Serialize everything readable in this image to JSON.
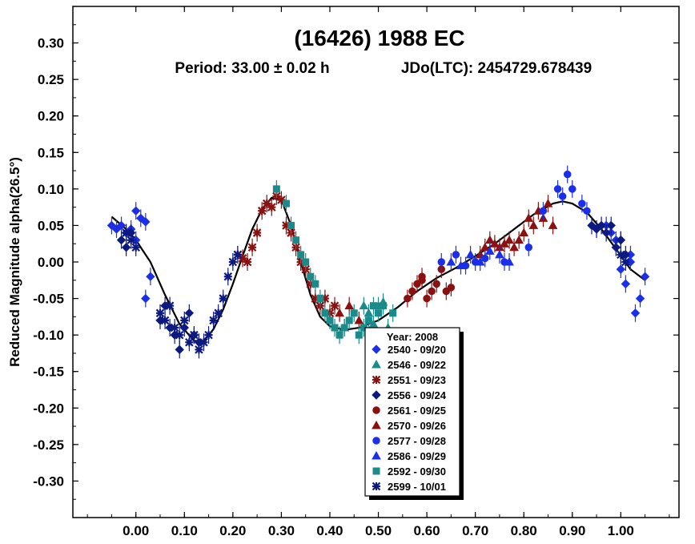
{
  "chart_data": {
    "type": "scatter",
    "title": "(16426) 1988 EC",
    "subtitle_period": "Period: 33.00 ± 0.02 h",
    "subtitle_epoch": "JDo(LTC): 2454729.678439",
    "xlabel": "",
    "ylabel": "Reduced Magnitude alpha(26.5°)",
    "xlim": [
      -0.13,
      1.12
    ],
    "ylim": [
      0.35,
      -0.35
    ],
    "x_ticks": [
      0.0,
      0.1,
      0.2,
      0.3,
      0.4,
      0.5,
      0.6,
      0.7,
      0.8,
      0.9,
      1.0
    ],
    "x_tick_labels": [
      "0.00",
      "0.10",
      "0.20",
      "0.30",
      "0.40",
      "0.50",
      "0.60",
      "0.70",
      "0.80",
      "0.90",
      "1.00"
    ],
    "y_ticks": [
      -0.3,
      -0.25,
      -0.2,
      -0.15,
      -0.1,
      -0.05,
      0.0,
      0.05,
      0.1,
      0.15,
      0.2,
      0.25,
      0.3
    ],
    "y_tick_labels": [
      "-0.30",
      "-0.25",
      "-0.20",
      "-0.15",
      "-0.10",
      "-0.05",
      "0.00",
      "0.05",
      "0.10",
      "0.15",
      "0.20",
      "0.25",
      "0.30"
    ],
    "legend": {
      "title": "Year: 2008",
      "position": "bottom-center",
      "entries": [
        {
          "label": "2540 - 09/20",
          "color": "#1c2fe8",
          "marker": "diamond"
        },
        {
          "label": "2546 - 09/22",
          "color": "#1a8a8a",
          "marker": "triangle"
        },
        {
          "label": "2551 - 09/23",
          "color": "#8b1010",
          "marker": "star"
        },
        {
          "label": "2556 - 09/24",
          "color": "#0c1a80",
          "marker": "diamond"
        },
        {
          "label": "2561 - 09/25",
          "color": "#8b1010",
          "marker": "circle"
        },
        {
          "label": "2570 - 09/26",
          "color": "#8b1010",
          "marker": "triangle"
        },
        {
          "label": "2577 - 09/28",
          "color": "#1c2fe8",
          "marker": "circle"
        },
        {
          "label": "2586 - 09/29",
          "color": "#1c2fe8",
          "marker": "triangle"
        },
        {
          "label": "2592 - 09/30",
          "color": "#1a8a8a",
          "marker": "square"
        },
        {
          "label": "2599 - 10/01",
          "color": "#0c1a80",
          "marker": "star"
        }
      ]
    },
    "fit_curve": {
      "x": [
        -0.05,
        -0.02,
        0.0,
        0.03,
        0.06,
        0.09,
        0.12,
        0.14,
        0.16,
        0.18,
        0.2,
        0.22,
        0.24,
        0.26,
        0.28,
        0.3,
        0.32,
        0.34,
        0.36,
        0.38,
        0.4,
        0.43,
        0.46,
        0.5,
        0.54,
        0.58,
        0.62,
        0.66,
        0.7,
        0.74,
        0.78,
        0.82,
        0.86,
        0.88,
        0.9,
        0.93,
        0.96,
        0.99,
        1.02,
        1.05
      ],
      "y": [
        0.062,
        0.045,
        0.03,
        0.0,
        -0.045,
        -0.085,
        -0.108,
        -0.108,
        -0.092,
        -0.065,
        -0.03,
        0.008,
        0.045,
        0.072,
        0.088,
        0.085,
        0.05,
        0.0,
        -0.045,
        -0.075,
        -0.088,
        -0.093,
        -0.09,
        -0.08,
        -0.062,
        -0.04,
        -0.022,
        -0.008,
        0.008,
        0.025,
        0.045,
        0.065,
        0.08,
        0.083,
        0.08,
        0.068,
        0.045,
        0.018,
        -0.01,
        -0.025
      ]
    },
    "series": [
      {
        "name": "2540 - 09/20",
        "marker": "diamond",
        "color": "#1c2fe8",
        "x": [
          -0.05,
          -0.04,
          -0.03,
          -0.02,
          -0.01,
          0.0,
          0.0,
          0.01,
          0.02,
          0.02,
          0.03,
          0.97,
          0.98,
          0.99,
          1.0,
          1.01,
          1.02,
          1.03,
          1.04,
          1.05,
          1.0,
          1.02
        ],
        "y": [
          0.05,
          0.045,
          0.05,
          0.04,
          0.045,
          0.07,
          0.03,
          0.06,
          0.055,
          -0.05,
          -0.02,
          0.05,
          0.04,
          0.03,
          -0.01,
          -0.03,
          0.01,
          -0.07,
          -0.05,
          -0.02,
          0.03,
          0.0
        ]
      },
      {
        "name": "2546 - 09/22",
        "marker": "triangle",
        "color": "#1a8a8a",
        "x": [
          0.48,
          0.5,
          0.51,
          0.49,
          0.47,
          0.52
        ],
        "y": [
          -0.07,
          -0.06,
          -0.055,
          -0.085,
          -0.06,
          -0.09
        ]
      },
      {
        "name": "2551 - 09/23",
        "marker": "star",
        "color": "#8b1010",
        "x": [
          0.21,
          0.22,
          0.23,
          0.24,
          0.25,
          0.26,
          0.27,
          0.28,
          0.29,
          0.3,
          0.31,
          0.32,
          0.33,
          0.34,
          0.35,
          0.36,
          0.37,
          0.38,
          0.39,
          0.4,
          0.41
        ],
        "y": [
          0.01,
          0.005,
          0.0,
          0.02,
          0.04,
          0.07,
          0.08,
          0.075,
          0.09,
          0.085,
          0.05,
          0.04,
          0.02,
          0.0,
          -0.01,
          -0.03,
          -0.05,
          -0.06,
          -0.05,
          -0.07,
          -0.06
        ]
      },
      {
        "name": "2556 - 09/24",
        "marker": "diamond",
        "color": "#0c1a80",
        "x": [
          0.05,
          0.06,
          0.07,
          0.08,
          0.09,
          0.1,
          0.11,
          0.12,
          0.13,
          0.94,
          0.95,
          0.96,
          0.97,
          0.98,
          0.99,
          1.0,
          1.01,
          -0.03,
          -0.02,
          -0.01
        ],
        "y": [
          -0.08,
          -0.06,
          -0.09,
          -0.1,
          -0.12,
          -0.09,
          -0.07,
          -0.1,
          -0.11,
          0.05,
          0.045,
          0.05,
          0.04,
          0.05,
          0.02,
          0.03,
          0.01,
          0.03,
          0.02,
          0.04
        ]
      },
      {
        "name": "2561 - 09/25",
        "marker": "circle",
        "color": "#8b1010",
        "x": [
          0.56,
          0.57,
          0.58,
          0.59,
          0.6,
          0.61,
          0.62,
          0.63,
          0.64,
          0.65,
          0.59
        ],
        "y": [
          -0.05,
          -0.04,
          -0.03,
          -0.02,
          -0.05,
          -0.04,
          -0.03,
          -0.01,
          -0.04,
          -0.035,
          -0.025
        ]
      },
      {
        "name": "2570 - 09/26",
        "marker": "triangle",
        "color": "#8b1010",
        "x": [
          0.71,
          0.72,
          0.73,
          0.74,
          0.75,
          0.76,
          0.77,
          0.78,
          0.79,
          0.8,
          0.81,
          0.82,
          0.83,
          0.84,
          0.85,
          0.86,
          0.42,
          0.44,
          0.46,
          0.43
        ],
        "y": [
          0.01,
          0.02,
          0.03,
          0.025,
          0.02,
          0.025,
          0.03,
          0.02,
          0.03,
          0.04,
          0.06,
          0.05,
          0.07,
          0.06,
          0.08,
          0.05,
          -0.07,
          -0.06,
          -0.08,
          -0.09
        ]
      },
      {
        "name": "2577 - 09/28",
        "marker": "circle",
        "color": "#1c2fe8",
        "x": [
          0.63,
          0.66,
          0.68,
          0.7,
          0.72,
          0.76,
          0.81,
          0.84,
          0.87,
          0.88,
          0.89,
          0.9,
          0.92,
          0.93
        ],
        "y": [
          0.0,
          0.01,
          -0.005,
          0.0,
          0.005,
          0.0,
          0.02,
          0.07,
          0.1,
          0.09,
          0.12,
          0.1,
          0.08,
          0.07
        ]
      },
      {
        "name": "2586 - 09/29",
        "marker": "triangle",
        "color": "#1c2fe8",
        "x": [
          0.65,
          0.67,
          0.69,
          0.71,
          0.73,
          0.75,
          0.77
        ],
        "y": [
          0.0,
          -0.005,
          0.01,
          0.0,
          0.015,
          0.01,
          0.0
        ]
      },
      {
        "name": "2592 - 09/30",
        "marker": "square",
        "color": "#1a8a8a",
        "x": [
          0.29,
          0.31,
          0.32,
          0.33,
          0.34,
          0.35,
          0.36,
          0.37,
          0.38,
          0.39,
          0.4,
          0.41,
          0.42,
          0.43,
          0.44,
          0.45,
          0.46,
          0.47,
          0.48,
          0.49,
          0.5,
          0.51,
          0.53
        ],
        "y": [
          0.1,
          0.08,
          0.05,
          0.03,
          0.01,
          0.0,
          -0.02,
          -0.03,
          -0.05,
          -0.07,
          -0.08,
          -0.09,
          -0.1,
          -0.09,
          -0.08,
          -0.07,
          -0.1,
          -0.09,
          -0.08,
          -0.06,
          -0.07,
          -0.06,
          -0.07
        ]
      },
      {
        "name": "2599 - 10/01",
        "marker": "star",
        "color": "#0c1a80",
        "x": [
          0.05,
          0.06,
          0.07,
          0.08,
          0.09,
          0.1,
          0.11,
          0.12,
          0.13,
          0.14,
          0.15,
          0.16,
          0.17,
          0.18,
          0.19,
          0.2,
          0.21,
          -0.02,
          -0.01,
          0.0,
          1.0,
          1.01
        ],
        "y": [
          -0.07,
          -0.08,
          -0.06,
          -0.09,
          -0.1,
          -0.08,
          -0.11,
          -0.1,
          -0.12,
          -0.11,
          -0.1,
          -0.08,
          -0.07,
          -0.05,
          -0.02,
          0.0,
          0.01,
          0.04,
          0.03,
          0.02,
          0.01,
          0.0
        ]
      }
    ]
  }
}
